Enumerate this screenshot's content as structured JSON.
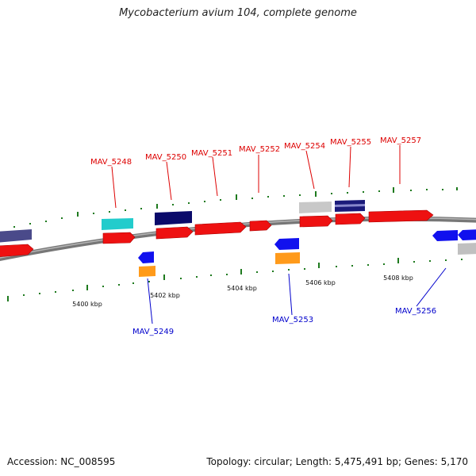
{
  "title": "Mycobacterium avium 104, complete genome",
  "footer": {
    "accession": "Accession: NC_008595",
    "topology": "Topology: circular; Length: 5,475,491 bp; Genes: 5,170"
  },
  "colors": {
    "forward_label": "#dd0000",
    "reverse_label": "#0000cc",
    "backbone": "#8a8a8a",
    "tick": "#1e7a1e"
  },
  "scale": {
    "labels": [
      "5400 kbp",
      "5402 kbp",
      "5404 kbp",
      "5406 kbp",
      "5408 kbp"
    ]
  },
  "gene_labels": {
    "forward": [
      "MAV_5248",
      "MAV_5250",
      "MAV_5251",
      "MAV_5252",
      "MAV_5254",
      "MAV_5255",
      "MAV_5257"
    ],
    "reverse": [
      "MAV_5249",
      "MAV_5253",
      "MAV_5256"
    ]
  }
}
